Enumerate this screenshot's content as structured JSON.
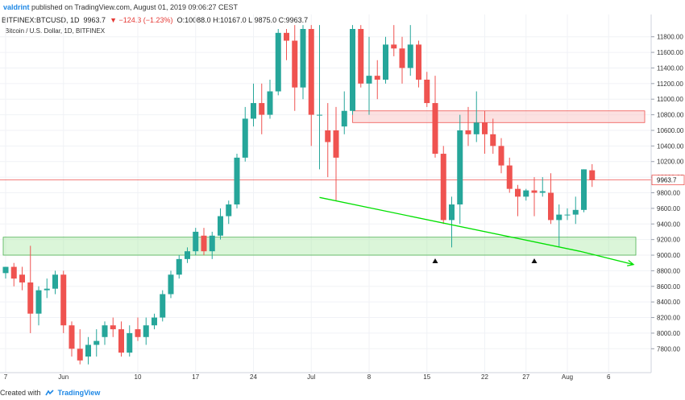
{
  "header": {
    "user": "valdrint",
    "published_text": "published on TradingView.com, August 01, 2019 09:06:27 CEST"
  },
  "symbol_line": {
    "symbol": "BITFINEX:BTCUSD, 1D",
    "last": "9963.7",
    "change": "▼ −124.3 (−1.23%)",
    "ohlc": "O:10088.0 H:10167.0 L:9875.0 C:9963.7"
  },
  "legend": {
    "title": "Bitcoin / U.S. Dollar, 1D, BITFINEX"
  },
  "footer": {
    "created_with": "Created with",
    "brand": "TradingView"
  },
  "colors": {
    "up": "#26a69a",
    "down": "#ef5350",
    "support_zone": "#a5e8a0",
    "resistance_zone": "#f9c9c9",
    "trendline": "#00e000",
    "price_line": "#ef5350"
  },
  "chart_data": {
    "type": "candlestick",
    "title": "Bitcoin / U.S. Dollar, 1D, BITFINEX",
    "ylim": [
      7600,
      11900
    ],
    "y_ticks": [
      7800,
      8000,
      8200,
      8400,
      8600,
      8800,
      9000,
      9200,
      9400,
      9600,
      9800,
      10000,
      10200,
      10400,
      10600,
      10800,
      11000,
      11200,
      11400,
      11600,
      11800
    ],
    "y_tick_labels": [
      "7800.00",
      "8000.00",
      "8200.00",
      "8400.00",
      "8600.00",
      "8800.00",
      "9000.00",
      "9200.00",
      "9400.00",
      "9600.00",
      "9800.00",
      "10000.00",
      "10200.00",
      "10400.00",
      "10600.00",
      "10800.00",
      "11000.00",
      "11200.00",
      "11400.00",
      "11600.00",
      "11800.00"
    ],
    "x_tick_labels": [
      {
        "label": "7",
        "day": 0
      },
      {
        "label": "Jun",
        "day": 7
      },
      {
        "label": "10",
        "day": 16
      },
      {
        "label": "17",
        "day": 23
      },
      {
        "label": "24",
        "day": 30
      },
      {
        "label": "Jul",
        "day": 37
      },
      {
        "label": "8",
        "day": 44
      },
      {
        "label": "15",
        "day": 51
      },
      {
        "label": "22",
        "day": 58
      },
      {
        "label": "27",
        "day": 63
      },
      {
        "label": "Aug",
        "day": 68
      },
      {
        "label": "6",
        "day": 73
      }
    ],
    "candles": [
      {
        "o": 8770,
        "h": 8850,
        "l": 8700,
        "c": 8850
      },
      {
        "o": 8850,
        "h": 8900,
        "l": 8600,
        "c": 8700
      },
      {
        "o": 8750,
        "h": 8850,
        "l": 8550,
        "c": 8650
      },
      {
        "o": 8650,
        "h": 9120,
        "l": 8000,
        "c": 8250
      },
      {
        "o": 8250,
        "h": 8600,
        "l": 8100,
        "c": 8550
      },
      {
        "o": 8550,
        "h": 8700,
        "l": 8450,
        "c": 8570
      },
      {
        "o": 8570,
        "h": 8800,
        "l": 8500,
        "c": 8750
      },
      {
        "o": 8750,
        "h": 8800,
        "l": 8000,
        "c": 8100
      },
      {
        "o": 8100,
        "h": 8150,
        "l": 7700,
        "c": 7800
      },
      {
        "o": 7800,
        "h": 8050,
        "l": 7600,
        "c": 7650
      },
      {
        "o": 7700,
        "h": 7950,
        "l": 7600,
        "c": 7850
      },
      {
        "o": 7850,
        "h": 8050,
        "l": 7700,
        "c": 7900
      },
      {
        "o": 7950,
        "h": 8150,
        "l": 7850,
        "c": 8100
      },
      {
        "o": 8100,
        "h": 8200,
        "l": 7950,
        "c": 8050
      },
      {
        "o": 8050,
        "h": 8150,
        "l": 7700,
        "c": 7750
      },
      {
        "o": 7750,
        "h": 8100,
        "l": 7700,
        "c": 8000
      },
      {
        "o": 8050,
        "h": 8200,
        "l": 7900,
        "c": 7950
      },
      {
        "o": 7950,
        "h": 8200,
        "l": 7850,
        "c": 8100
      },
      {
        "o": 8100,
        "h": 8250,
        "l": 8050,
        "c": 8200
      },
      {
        "o": 8200,
        "h": 8550,
        "l": 8150,
        "c": 8500
      },
      {
        "o": 8500,
        "h": 8800,
        "l": 8450,
        "c": 8750
      },
      {
        "o": 8750,
        "h": 9000,
        "l": 8700,
        "c": 8950
      },
      {
        "o": 8950,
        "h": 9100,
        "l": 8900,
        "c": 9050
      },
      {
        "o": 9050,
        "h": 9350,
        "l": 9000,
        "c": 9300
      },
      {
        "o": 9250,
        "h": 9350,
        "l": 9000,
        "c": 9050
      },
      {
        "o": 9050,
        "h": 9300,
        "l": 8950,
        "c": 9250
      },
      {
        "o": 9250,
        "h": 9600,
        "l": 9200,
        "c": 9500
      },
      {
        "o": 9500,
        "h": 9700,
        "l": 9400,
        "c": 9650
      },
      {
        "o": 9650,
        "h": 10300,
        "l": 9600,
        "c": 10250
      },
      {
        "o": 10250,
        "h": 10900,
        "l": 10200,
        "c": 10750
      },
      {
        "o": 10750,
        "h": 11200,
        "l": 10650,
        "c": 10950
      },
      {
        "o": 10950,
        "h": 11200,
        "l": 10550,
        "c": 10800
      },
      {
        "o": 10800,
        "h": 11250,
        "l": 10750,
        "c": 11100
      },
      {
        "o": 11100,
        "h": 11900,
        "l": 11050,
        "c": 11850
      },
      {
        "o": 11850,
        "h": 11900,
        "l": 11500,
        "c": 11750
      },
      {
        "o": 11750,
        "h": 11950,
        "l": 10850,
        "c": 11150
      },
      {
        "o": 11150,
        "h": 11950,
        "l": 11000,
        "c": 11900
      },
      {
        "o": 11900,
        "h": 11950,
        "l": 10400,
        "c": 10800
      },
      {
        "o": 10800,
        "h": 11950,
        "l": 10100,
        "c": 10800
      },
      {
        "o": 10600,
        "h": 10950,
        "l": 10000,
        "c": 10450
      },
      {
        "o": 10600,
        "h": 10900,
        "l": 9700,
        "c": 10250
      },
      {
        "o": 10650,
        "h": 11100,
        "l": 10550,
        "c": 10850
      },
      {
        "o": 10850,
        "h": 11950,
        "l": 10800,
        "c": 11900
      },
      {
        "o": 11900,
        "h": 11950,
        "l": 11150,
        "c": 11200
      },
      {
        "o": 11200,
        "h": 11800,
        "l": 10800,
        "c": 11300
      },
      {
        "o": 11300,
        "h": 11500,
        "l": 11000,
        "c": 11250
      },
      {
        "o": 11250,
        "h": 11800,
        "l": 11200,
        "c": 11700
      },
      {
        "o": 11700,
        "h": 11950,
        "l": 11550,
        "c": 11650
      },
      {
        "o": 11650,
        "h": 11800,
        "l": 11200,
        "c": 11400
      },
      {
        "o": 11400,
        "h": 11950,
        "l": 11300,
        "c": 11700
      },
      {
        "o": 11700,
        "h": 11750,
        "l": 11150,
        "c": 11250
      },
      {
        "o": 11250,
        "h": 11350,
        "l": 10900,
        "c": 10950
      },
      {
        "o": 10950,
        "h": 11300,
        "l": 10250,
        "c": 10300
      },
      {
        "o": 10300,
        "h": 10400,
        "l": 9400,
        "c": 9450
      },
      {
        "o": 9450,
        "h": 9750,
        "l": 9100,
        "c": 9650
      },
      {
        "o": 9650,
        "h": 10800,
        "l": 9400,
        "c": 10600
      },
      {
        "o": 10600,
        "h": 10900,
        "l": 10400,
        "c": 10550
      },
      {
        "o": 10550,
        "h": 11100,
        "l": 10450,
        "c": 10700
      },
      {
        "o": 10700,
        "h": 10850,
        "l": 10300,
        "c": 10550
      },
      {
        "o": 10550,
        "h": 10750,
        "l": 10300,
        "c": 10400
      },
      {
        "o": 10400,
        "h": 10500,
        "l": 10050,
        "c": 10150
      },
      {
        "o": 10150,
        "h": 10250,
        "l": 9800,
        "c": 9850
      },
      {
        "o": 9850,
        "h": 9900,
        "l": 9500,
        "c": 9750
      },
      {
        "o": 9750,
        "h": 9850,
        "l": 9700,
        "c": 9830
      },
      {
        "o": 9830,
        "h": 10000,
        "l": 9500,
        "c": 9800
      },
      {
        "o": 9800,
        "h": 10000,
        "l": 9750,
        "c": 9820
      },
      {
        "o": 9800,
        "h": 10050,
        "l": 9400,
        "c": 9450
      },
      {
        "o": 9450,
        "h": 9650,
        "l": 9100,
        "c": 9520
      },
      {
        "o": 9520,
        "h": 9600,
        "l": 9450,
        "c": 9520
      },
      {
        "o": 9520,
        "h": 9750,
        "l": 9400,
        "c": 9580
      },
      {
        "o": 9580,
        "h": 10100,
        "l": 9550,
        "c": 10100
      },
      {
        "o": 10088,
        "h": 10167,
        "l": 9875,
        "c": 9963.7
      }
    ],
    "last_price": 9963.7,
    "last_price_label": "9963.7",
    "resistance_zone": [
      10700,
      10850
    ],
    "support_zone": [
      9000,
      9230
    ],
    "trendline": {
      "points": [
        {
          "day": 38,
          "price": 9740
        },
        {
          "day": 69.5,
          "price": 9050
        },
        {
          "day": 76,
          "price": 8880
        }
      ],
      "arrow": true
    },
    "markers": [
      {
        "day": 52,
        "price": 9000,
        "shape": "triangle-up"
      },
      {
        "day": 64,
        "price": 9000,
        "shape": "triangle-up"
      }
    ]
  }
}
